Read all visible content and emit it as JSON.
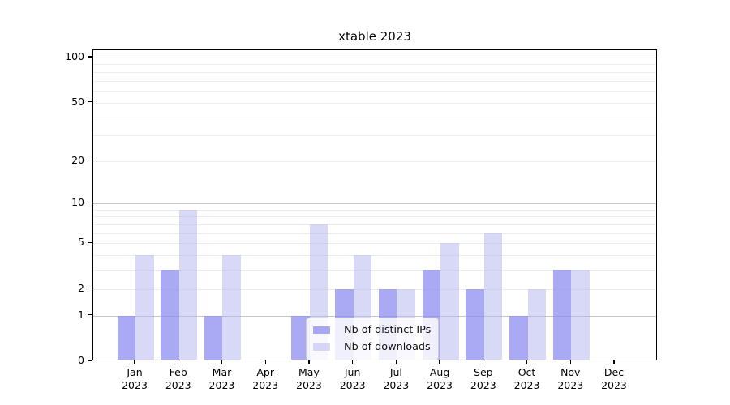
{
  "figure": {
    "title": "xtable 2023"
  },
  "chart_data": {
    "type": "bar",
    "title": "xtable 2023",
    "categories": [
      "Jan",
      "Feb",
      "Mar",
      "Apr",
      "May",
      "Jun",
      "Jul",
      "Aug",
      "Sep",
      "Oct",
      "Nov",
      "Dec"
    ],
    "year": "2023",
    "series": [
      {
        "name": "Nb of distinct IPs",
        "color": "rgba(140,140,240,0.75)",
        "color_hex": "#a7a7f1",
        "values": [
          1,
          3,
          1,
          0,
          1,
          2,
          2,
          3,
          2,
          1,
          3,
          0
        ]
      },
      {
        "name": "Nb of downloads",
        "color": "rgba(178,178,239,0.5)",
        "color_hex": "#d9d9f7",
        "values": [
          4,
          9,
          4,
          0,
          7,
          4,
          2,
          5,
          6,
          2,
          3,
          0
        ]
      }
    ],
    "y_axis": {
      "scale": "log1p",
      "tick_values": [
        0,
        1,
        2,
        5,
        10,
        20,
        50,
        100
      ],
      "major_gridlines": [
        1,
        10,
        100
      ],
      "minor_gridlines": [
        2,
        3,
        4,
        5,
        6,
        7,
        8,
        9,
        20,
        30,
        40,
        50,
        60,
        70,
        80,
        90
      ],
      "ylim": [
        0,
        112
      ]
    },
    "xlabel": "",
    "ylabel": "",
    "grid": true,
    "legend_position": "lower center"
  },
  "colors": {
    "background": "#ffffff",
    "spine": "#000000",
    "major_grid": "#c6c6c6",
    "minor_grid": "#ededed",
    "text": "#000000",
    "legend_border": "#cccccc",
    "legend_background": "rgba(255,255,255,0.82)"
  }
}
